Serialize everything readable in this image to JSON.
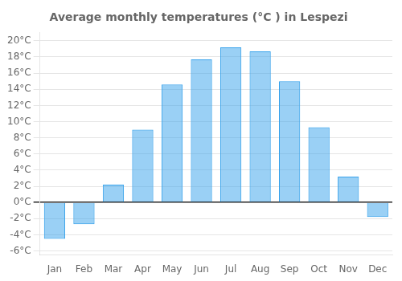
{
  "chart_data": {
    "type": "bar",
    "title": "Average monthly temperatures (°C ) in Lespezi",
    "categories": [
      "Jan",
      "Feb",
      "Mar",
      "Apr",
      "May",
      "Jun",
      "Jul",
      "Aug",
      "Sep",
      "Oct",
      "Nov",
      "Dec"
    ],
    "values": [
      -4.5,
      -2.7,
      2.2,
      9.0,
      14.6,
      17.7,
      19.2,
      18.7,
      15.0,
      9.3,
      3.2,
      -1.8
    ],
    "ylim": [
      -6.5,
      21
    ],
    "yticks": [
      {
        "value": -6,
        "label": "-6°C"
      },
      {
        "value": -4,
        "label": "-4°C"
      },
      {
        "value": -2,
        "label": "-2°C"
      },
      {
        "value": 0,
        "label": "0°C"
      },
      {
        "value": 2,
        "label": "2°C"
      },
      {
        "value": 4,
        "label": "4°C"
      },
      {
        "value": 6,
        "label": "6°C"
      },
      {
        "value": 8,
        "label": "8°C"
      },
      {
        "value": 10,
        "label": "10°C"
      },
      {
        "value": 12,
        "label": "12°C"
      },
      {
        "value": 14,
        "label": "14°C"
      },
      {
        "value": 16,
        "label": "16°C"
      },
      {
        "value": 18,
        "label": "18°C"
      },
      {
        "value": 20,
        "label": "20°C"
      }
    ],
    "grid": true
  }
}
